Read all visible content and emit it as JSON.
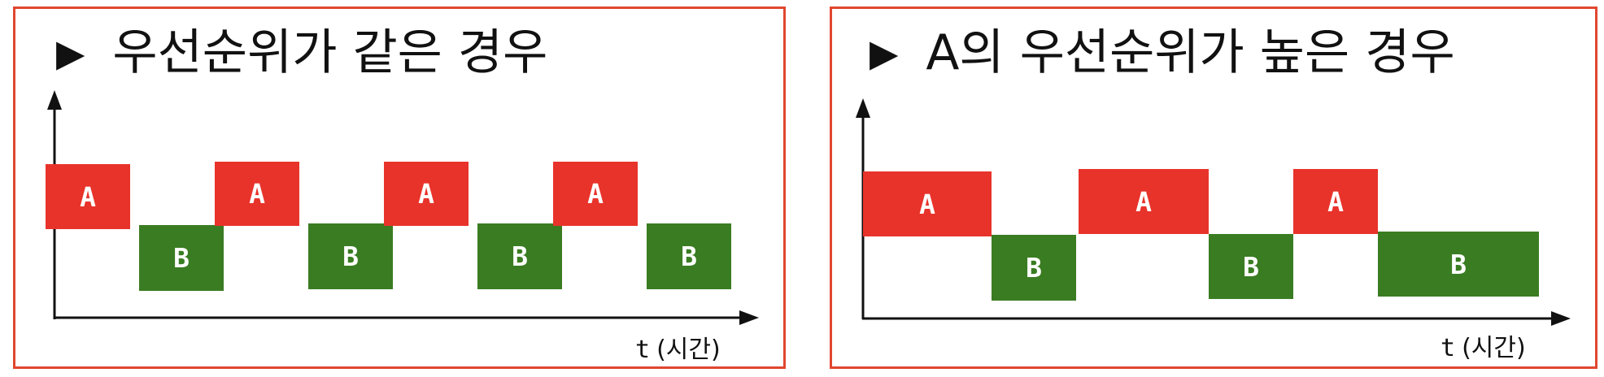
{
  "colors": {
    "frame": "#e0472f",
    "task_a": "#e8332a",
    "task_b": "#3a7c22",
    "axis": "#111111"
  },
  "panels": [
    {
      "title": "우선순위가 같은 경우",
      "marker": "▶",
      "time_axis": {
        "symbol": "t",
        "unit": "(시간)"
      },
      "blocks": [
        {
          "label": "A",
          "task": "A"
        },
        {
          "label": "B",
          "task": "B"
        },
        {
          "label": "A",
          "task": "A"
        },
        {
          "label": "B",
          "task": "B"
        },
        {
          "label": "A",
          "task": "A"
        },
        {
          "label": "B",
          "task": "B"
        },
        {
          "label": "A",
          "task": "A"
        },
        {
          "label": "B",
          "task": "B"
        }
      ]
    },
    {
      "title": "A의 우선순위가 높은 경우",
      "marker": "▶",
      "time_axis": {
        "symbol": "t",
        "unit": "(시간)"
      },
      "blocks": [
        {
          "label": "A",
          "task": "A"
        },
        {
          "label": "B",
          "task": "B"
        },
        {
          "label": "A",
          "task": "A"
        },
        {
          "label": "B",
          "task": "B"
        },
        {
          "label": "A",
          "task": "A"
        },
        {
          "label": "B",
          "task": "B"
        }
      ]
    }
  ]
}
